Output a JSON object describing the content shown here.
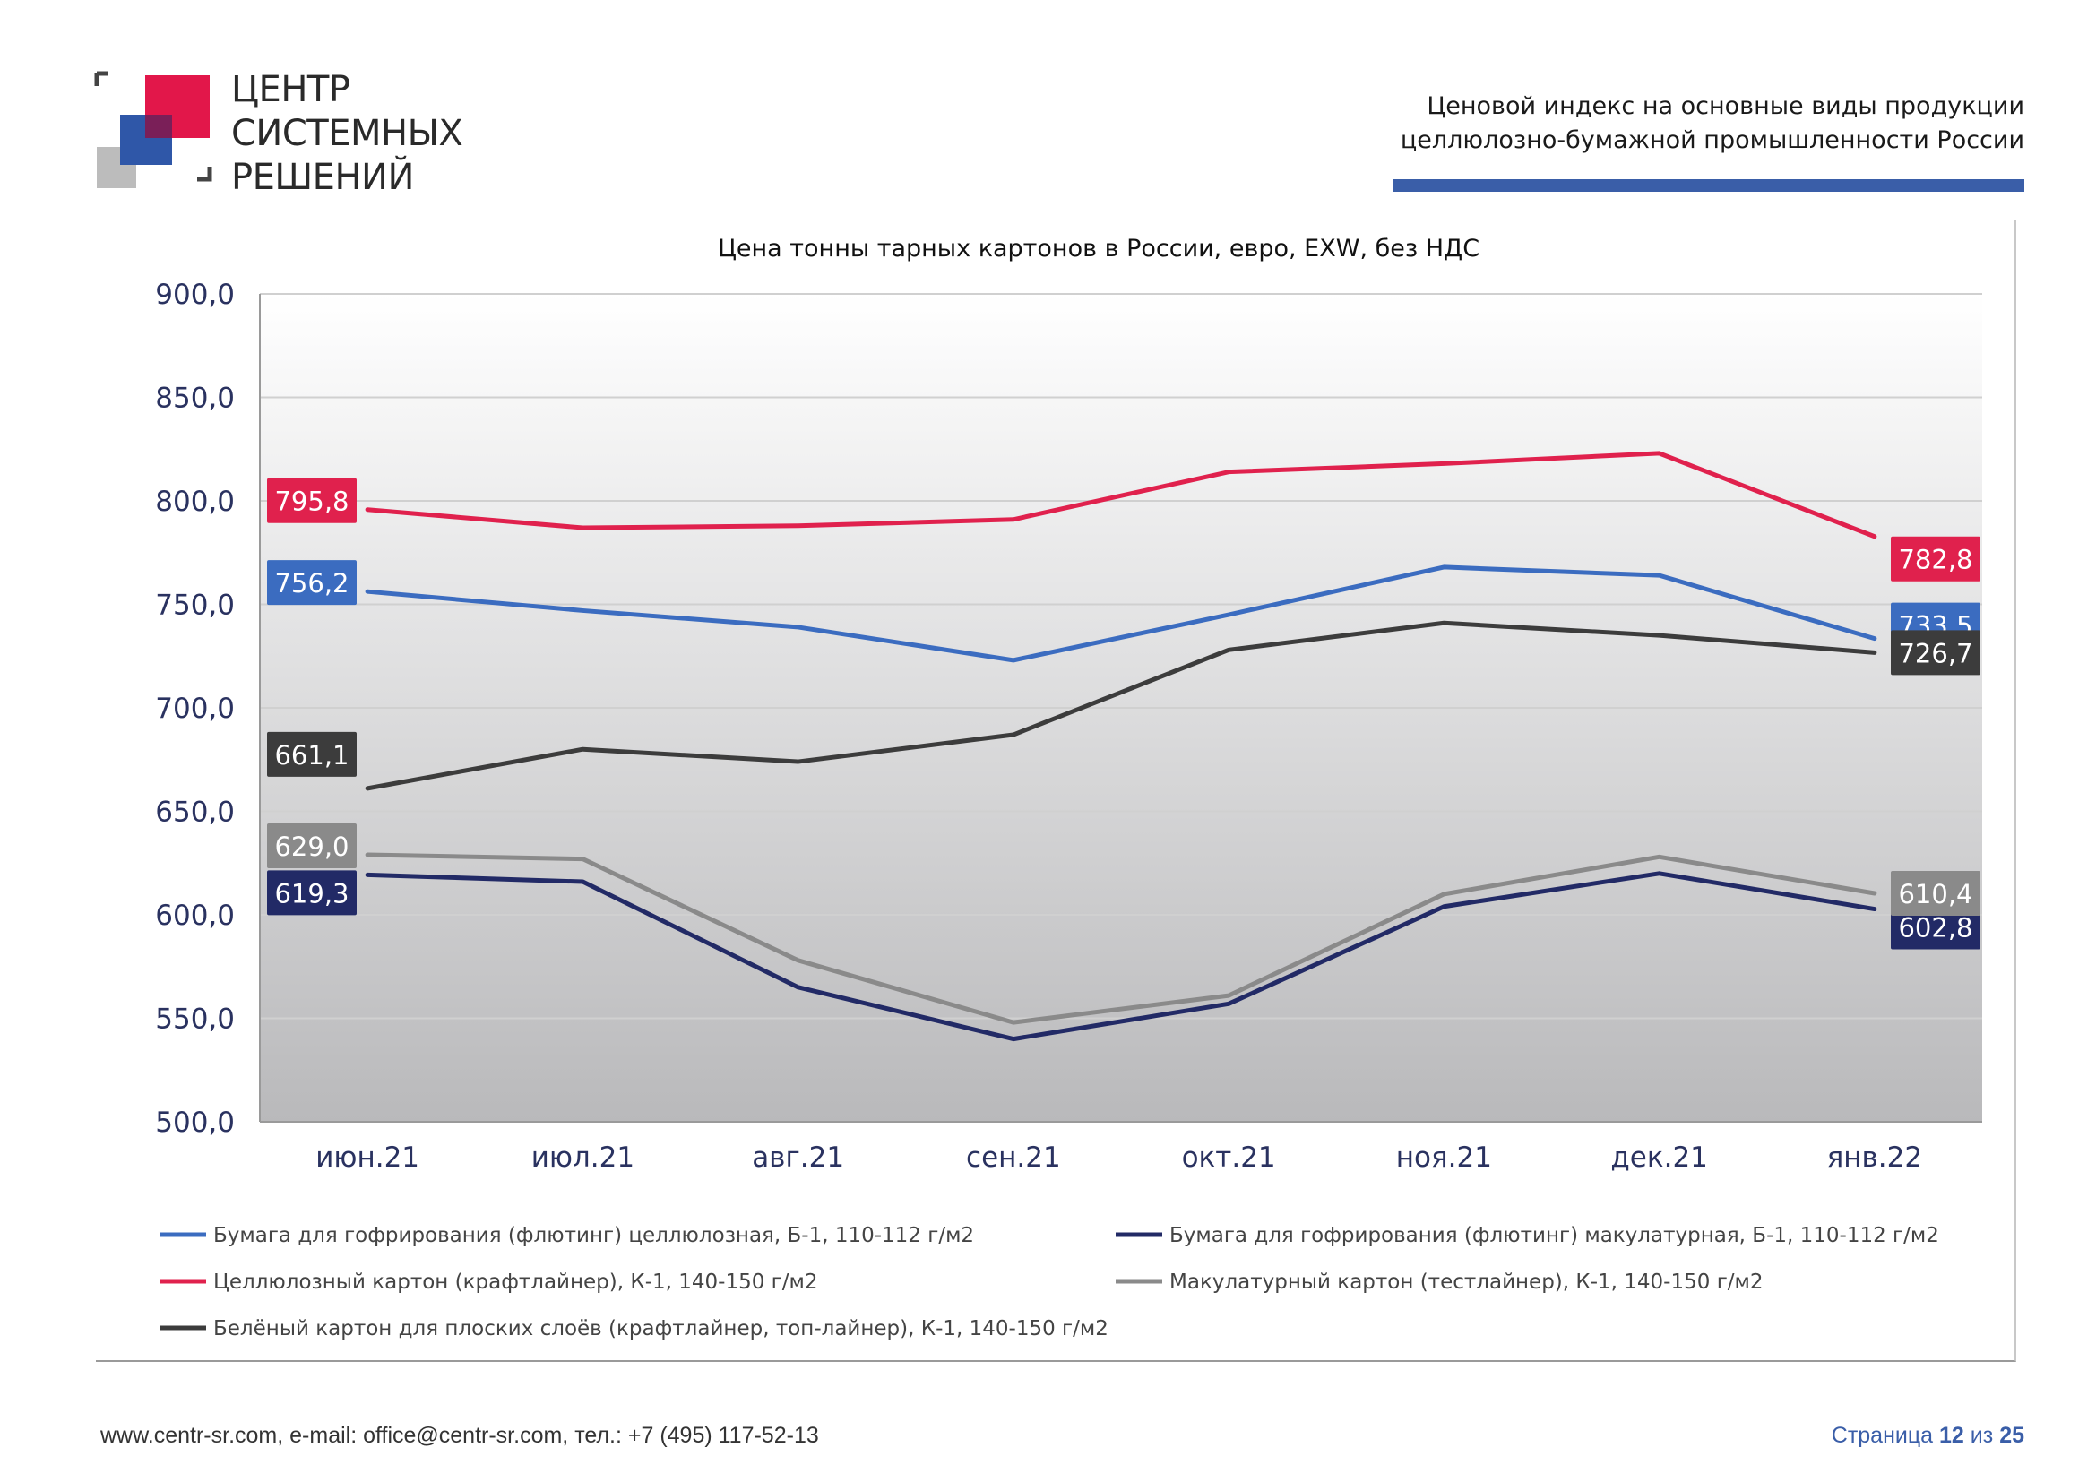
{
  "header": {
    "logo_lines": [
      "ЦЕНТР",
      "СИСТЕМНЫХ",
      "РЕШЕНИЙ"
    ],
    "doc_title_lines": [
      "Ценовой  индекс  на  основные виды продукции",
      "целлюлозно-бумажной промышленности России"
    ]
  },
  "footer": {
    "contacts": "www.centr-sr.com, e-mail: office@centr-sr.com, тел.: +7 (495) 117-52-13",
    "page_prefix": "Страница",
    "page_current": "12",
    "page_sep": "из",
    "page_total": "25"
  },
  "colors": {
    "logo_red": "#e2174a",
    "logo_blue": "#2f57a8",
    "logo_grey": "#bcbcbc",
    "accent_bar": "#3a5ea8"
  },
  "chart_data": {
    "type": "line",
    "title": "Цена тонны тарных картонов в России, евро, EXW, без НДС",
    "categories": [
      "июн.21",
      "июл.21",
      "авг.21",
      "сен.21",
      "окт.21",
      "ноя.21",
      "дек.21",
      "янв.22"
    ],
    "ylim": [
      500,
      900
    ],
    "yticks": [
      "500,0",
      "550,0",
      "600,0",
      "650,0",
      "700,0",
      "750,0",
      "800,0",
      "850,0",
      "900,0"
    ],
    "grid": true,
    "legend_position": "bottom",
    "series": [
      {
        "name": "Бумага для гофрирования (флютинг) целлюлозная, Б-1, 110-112 г/м2",
        "color": "#3b6cc0",
        "values": [
          756.2,
          747,
          739,
          723,
          745,
          768,
          764,
          733.5
        ],
        "first_label": "756,2",
        "last_label": "733,5"
      },
      {
        "name": "Бумага для гофрирования (флютинг) макулатурная, Б-1, 110-112 г/м2",
        "color": "#222a66",
        "values": [
          619.3,
          616,
          565,
          540,
          557,
          604,
          620,
          602.8
        ],
        "first_label": "619,3",
        "last_label": "602,8"
      },
      {
        "name": "Целлюлозный картон (крафтлайнер), К-1, 140-150 г/м2",
        "color": "#e0214d",
        "values": [
          795.8,
          787,
          788,
          791,
          814,
          818,
          823,
          782.8
        ],
        "first_label": "795,8",
        "last_label": "782,8"
      },
      {
        "name": "Макулатурный картон (тестлайнер), К-1, 140-150 г/м2",
        "color": "#8a8a8a",
        "values": [
          629.0,
          627,
          578,
          548,
          561,
          610,
          628,
          610.4
        ],
        "first_label": "629,0",
        "last_label": "610,4"
      },
      {
        "name": "Белёный картон для плоских слоёв (крафтлайнер, топ-лайнер), К-1, 140-150 г/м2",
        "color": "#3c3c3c",
        "values": [
          661.1,
          680,
          674,
          687,
          728,
          741,
          735,
          726.7
        ],
        "first_label": "661,1",
        "last_label": "726,7"
      }
    ]
  }
}
